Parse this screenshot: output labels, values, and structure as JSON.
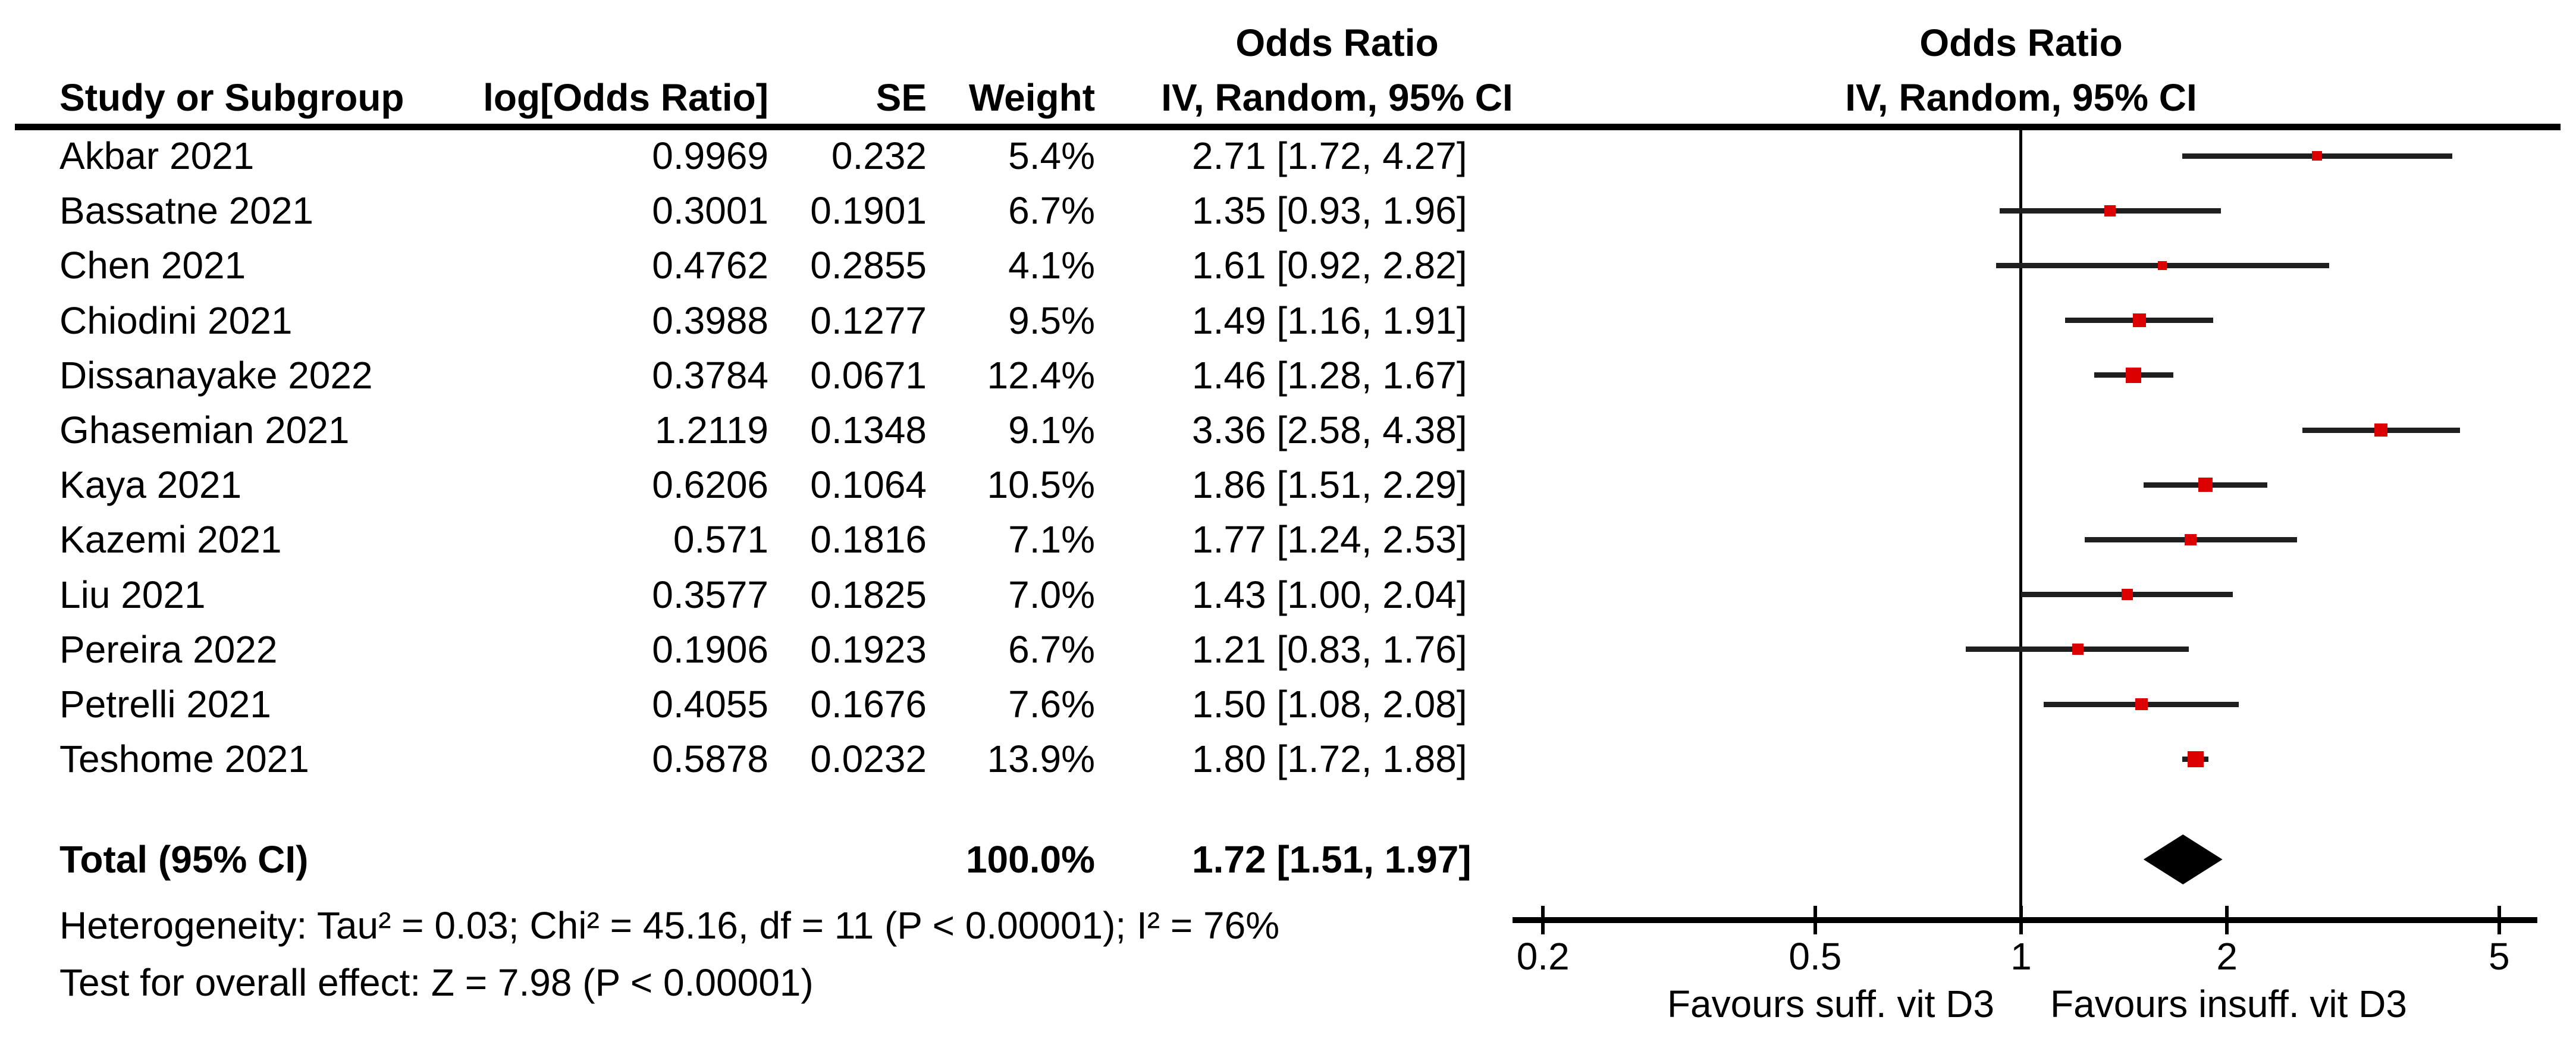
{
  "header": {
    "col_study": "Study or Subgroup",
    "col_log_or": "log[Odds Ratio]",
    "col_se": "SE",
    "col_weight": "Weight",
    "col_or_line1": "Odds Ratio",
    "col_or_line2": "IV, Random, 95% CI",
    "plot_line1": "Odds Ratio",
    "plot_line2": "IV, Random, 95% CI"
  },
  "chart_data": {
    "type": "forest",
    "x_scale": "log",
    "axis_ticks": [
      0.2,
      0.5,
      1,
      2,
      5
    ],
    "axis_tick_labels": [
      "0.2",
      "0.5",
      "1",
      "2",
      "5"
    ],
    "null_line_value": 1,
    "marker_color": "#dd0000",
    "line_color": "#1f1f1f",
    "diamond_color": "#000000",
    "studies": [
      {
        "name": "Akbar 2021",
        "log_or": "0.9969",
        "se": "0.232",
        "weight_label": "5.4%",
        "weight": 5.4,
        "or": 2.71,
        "ci_lo": 1.72,
        "ci_hi": 4.27,
        "ci_label": "2.71 [1.72, 4.27]"
      },
      {
        "name": "Bassatne 2021",
        "log_or": "0.3001",
        "se": "0.1901",
        "weight_label": "6.7%",
        "weight": 6.7,
        "or": 1.35,
        "ci_lo": 0.93,
        "ci_hi": 1.96,
        "ci_label": "1.35 [0.93, 1.96]"
      },
      {
        "name": "Chen 2021",
        "log_or": "0.4762",
        "se": "0.2855",
        "weight_label": "4.1%",
        "weight": 4.1,
        "or": 1.61,
        "ci_lo": 0.92,
        "ci_hi": 2.82,
        "ci_label": "1.61 [0.92, 2.82]"
      },
      {
        "name": "Chiodini 2021",
        "log_or": "0.3988",
        "se": "0.1277",
        "weight_label": "9.5%",
        "weight": 9.5,
        "or": 1.49,
        "ci_lo": 1.16,
        "ci_hi": 1.91,
        "ci_label": "1.49 [1.16, 1.91]"
      },
      {
        "name": "Dissanayake 2022",
        "log_or": "0.3784",
        "se": "0.0671",
        "weight_label": "12.4%",
        "weight": 12.4,
        "or": 1.46,
        "ci_lo": 1.28,
        "ci_hi": 1.67,
        "ci_label": "1.46 [1.28, 1.67]"
      },
      {
        "name": "Ghasemian 2021",
        "log_or": "1.2119",
        "se": "0.1348",
        "weight_label": "9.1%",
        "weight": 9.1,
        "or": 3.36,
        "ci_lo": 2.58,
        "ci_hi": 4.38,
        "ci_label": "3.36 [2.58, 4.38]"
      },
      {
        "name": "Kaya 2021",
        "log_or": "0.6206",
        "se": "0.1064",
        "weight_label": "10.5%",
        "weight": 10.5,
        "or": 1.86,
        "ci_lo": 1.51,
        "ci_hi": 2.29,
        "ci_label": "1.86 [1.51, 2.29]"
      },
      {
        "name": "Kazemi 2021",
        "log_or": "0.571",
        "se": "0.1816",
        "weight_label": "7.1%",
        "weight": 7.1,
        "or": 1.77,
        "ci_lo": 1.24,
        "ci_hi": 2.53,
        "ci_label": "1.77 [1.24, 2.53]"
      },
      {
        "name": "Liu 2021",
        "log_or": "0.3577",
        "se": "0.1825",
        "weight_label": "7.0%",
        "weight": 7.0,
        "or": 1.43,
        "ci_lo": 1.0,
        "ci_hi": 2.04,
        "ci_label": "1.43 [1.00, 2.04]"
      },
      {
        "name": "Pereira 2022",
        "log_or": "0.1906",
        "se": "0.1923",
        "weight_label": "6.7%",
        "weight": 6.7,
        "or": 1.21,
        "ci_lo": 0.83,
        "ci_hi": 1.76,
        "ci_label": "1.21 [0.83, 1.76]"
      },
      {
        "name": "Petrelli 2021",
        "log_or": "0.4055",
        "se": "0.1676",
        "weight_label": "7.6%",
        "weight": 7.6,
        "or": 1.5,
        "ci_lo": 1.08,
        "ci_hi": 2.08,
        "ci_label": "1.50 [1.08, 2.08]"
      },
      {
        "name": "Teshome 2021",
        "log_or": "0.5878",
        "se": "0.0232",
        "weight_label": "13.9%",
        "weight": 13.9,
        "or": 1.8,
        "ci_lo": 1.72,
        "ci_hi": 1.88,
        "ci_label": "1.80 [1.72, 1.88]"
      }
    ],
    "total": {
      "label": "Total (95% CI)",
      "weight_label": "100.0%",
      "or": 1.72,
      "ci_lo": 1.51,
      "ci_hi": 1.97,
      "ci_label": "1.72 [1.51, 1.97]"
    },
    "heterogeneity": "Heterogeneity: Tau² = 0.03; Chi² = 45.16, df = 11 (P < 0.00001); I² = 76%",
    "overall_effect": "Test for overall effect: Z = 7.98 (P < 0.00001)",
    "favours_left": "Favours suff. vit D3",
    "favours_right": "Favours insuff. vit D3"
  }
}
